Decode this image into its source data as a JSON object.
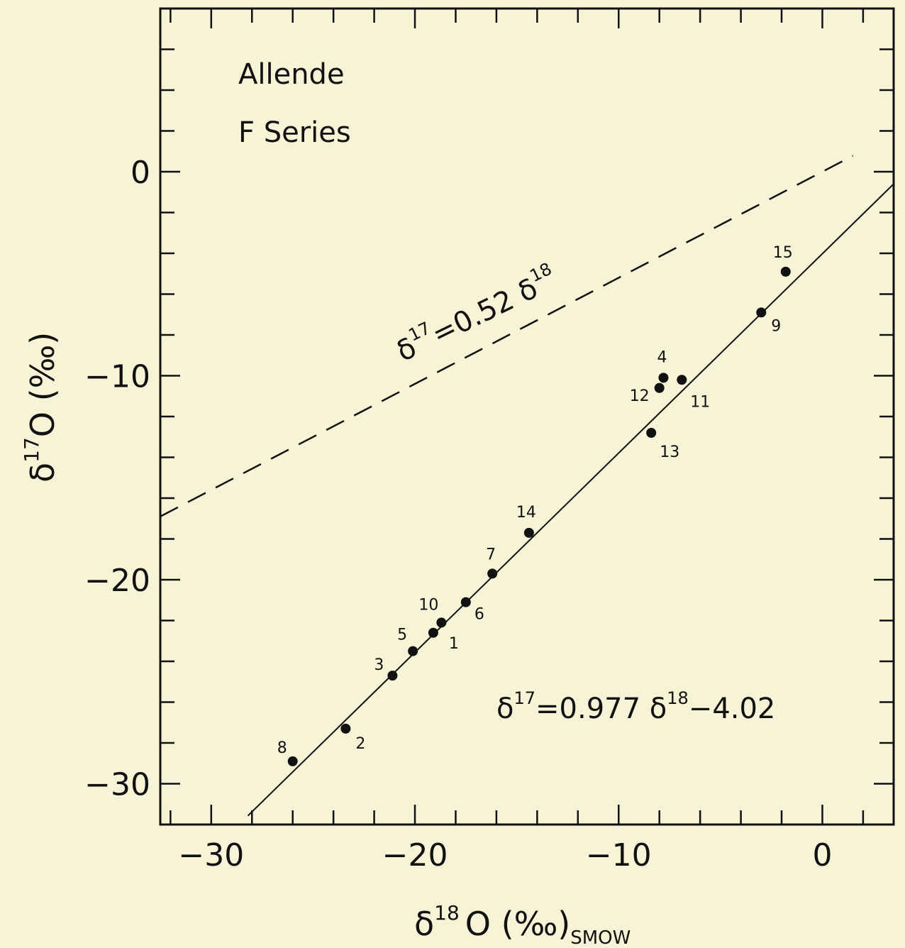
{
  "chart_data": {
    "type": "scatter",
    "title": [
      "Allende",
      "F Series"
    ],
    "xlabel": {
      "main": "δ",
      "sup": "18",
      "rest": "O (‰)",
      "sub": "SMOW"
    },
    "ylabel": {
      "main": "δ",
      "sup": "17",
      "rest": "O (‰)"
    },
    "xlim": [
      -32.5,
      3.5
    ],
    "ylim": [
      -32,
      8
    ],
    "xticks": [
      -30,
      -20,
      -10,
      0
    ],
    "yticks": [
      -30,
      -20,
      -10,
      0
    ],
    "xtick_labels": [
      "−30",
      "−20",
      "−10",
      "0"
    ],
    "ytick_labels": [
      "−30",
      "−20",
      "−10",
      "0"
    ],
    "grid": false,
    "points": [
      {
        "label": "1",
        "x": -19.1,
        "y": -22.6
      },
      {
        "label": "2",
        "x": -23.4,
        "y": -27.3
      },
      {
        "label": "3",
        "x": -21.1,
        "y": -24.7
      },
      {
        "label": "4",
        "x": -7.8,
        "y": -10.1
      },
      {
        "label": "5",
        "x": -20.1,
        "y": -23.5
      },
      {
        "label": "6",
        "x": -17.5,
        "y": -21.1
      },
      {
        "label": "7",
        "x": -16.2,
        "y": -19.7
      },
      {
        "label": "8",
        "x": -26.0,
        "y": -28.9
      },
      {
        "label": "9",
        "x": -3.0,
        "y": -6.9
      },
      {
        "label": "10",
        "x": -18.7,
        "y": -22.1
      },
      {
        "label": "11",
        "x": -6.9,
        "y": -10.2
      },
      {
        "label": "12",
        "x": -8.0,
        "y": -10.6
      },
      {
        "label": "13",
        "x": -8.4,
        "y": -12.8
      },
      {
        "label": "14",
        "x": -14.4,
        "y": -17.7
      },
      {
        "label": "15",
        "x": -1.8,
        "y": -4.9
      }
    ],
    "lines": [
      {
        "kind": "solid",
        "slope": 0.977,
        "intercept": -4.02,
        "x_range": [
          -28.2,
          3.5
        ]
      },
      {
        "kind": "dashed",
        "slope": 0.52,
        "intercept": 0,
        "x_range": [
          -32.5,
          1.5
        ]
      }
    ],
    "annotations": {
      "fit_equation": {
        "d": "δ",
        "sup1": "17",
        "mid": "=0.977 δ",
        "sup2": "18",
        "tail": "−4.02"
      },
      "ref_equation": {
        "d": "δ",
        "sup1": "17",
        "mid": "=0.52 δ",
        "sup2": "18"
      }
    }
  }
}
